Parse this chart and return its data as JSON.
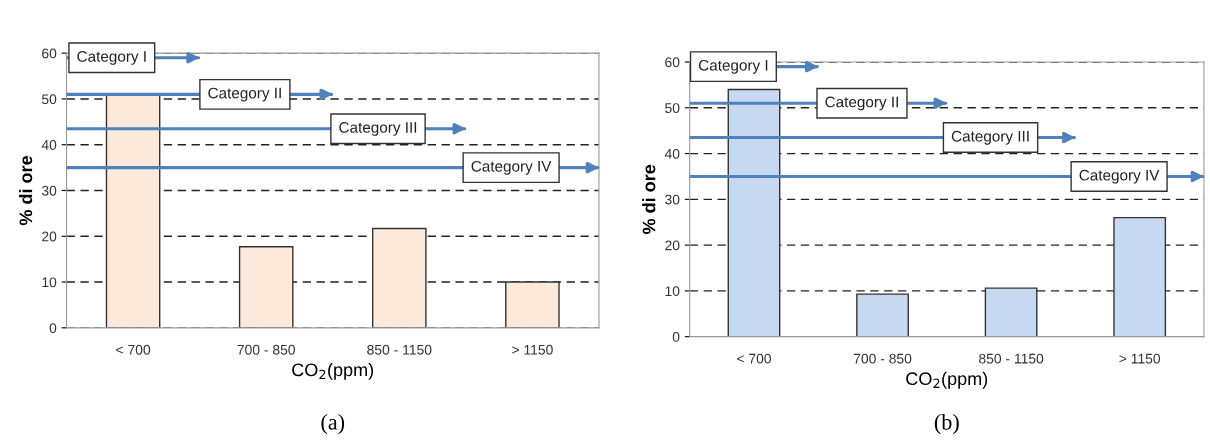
{
  "chart_data": [
    {
      "type": "bar",
      "categories": [
        "< 700",
        "700 - 850",
        "850 - 1150",
        "> 1150"
      ],
      "values": [
        51,
        17.7,
        21.7,
        10
      ],
      "color": "#fde9d9",
      "xlabel": "CO$_{2}$(ppm)",
      "ylabel": "% di ore",
      "ylim": [
        0,
        60
      ],
      "yticks": [
        0,
        10,
        20,
        30,
        40,
        50,
        60
      ],
      "grid": "y",
      "ref_lines": [
        {
          "axis": "y",
          "value": 59,
          "label": "Category I",
          "color": "#4f81bd"
        },
        {
          "axis": "y",
          "value": 51,
          "label": "Category II",
          "color": "#4f81bd"
        },
        {
          "axis": "y",
          "value": 43.5,
          "label": "Category III",
          "color": "#4f81bd"
        },
        {
          "axis": "y",
          "value": 35,
          "label": "Category IV",
          "color": "#4f81bd"
        }
      ],
      "annotations": [
        "(a)"
      ]
    },
    {
      "type": "bar",
      "categories": [
        "< 700",
        "700 - 850",
        "850 - 1150",
        "> 1150"
      ],
      "values": [
        54,
        9.3,
        10.6,
        26
      ],
      "color": "#c6d9f1",
      "xlabel": "CO$_{2}$(ppm)",
      "ylabel": "% di ore",
      "ylim": [
        0,
        60
      ],
      "yticks": [
        0,
        10,
        20,
        30,
        40,
        50,
        60
      ],
      "grid": "y",
      "ref_lines": [
        {
          "axis": "y",
          "value": 59,
          "label": "Category I",
          "color": "#4f81bd"
        },
        {
          "axis": "y",
          "value": 51,
          "label": "Category II",
          "color": "#4f81bd"
        },
        {
          "axis": "y",
          "value": 43.5,
          "label": "Category III",
          "color": "#4f81bd"
        },
        {
          "axis": "y",
          "value": 35,
          "label": "Category IV",
          "color": "#4f81bd"
        }
      ],
      "annotations": [
        "(b)"
      ]
    }
  ]
}
